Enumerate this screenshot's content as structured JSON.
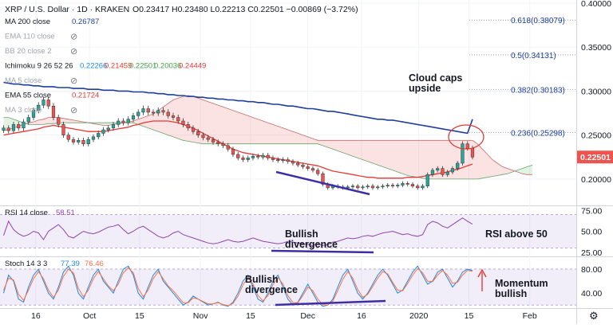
{
  "header": {
    "title": "XRP / U.S. Dollar · 1D · KRAKEN",
    "ohlc": "O0.23417  H0.23480  L0.22213  C0.22501  −0.00869 (−3.72%)"
  },
  "indicators": [
    {
      "label": "MA 200 close",
      "value": "0.26787",
      "color": "#1f3e9c",
      "hidden": false
    },
    {
      "label": "EMA 110 close",
      "value": "",
      "color": "#9a9a9a",
      "hidden": true
    },
    {
      "label": "BB 20 close 2",
      "value": "",
      "color": "#9a9a9a",
      "hidden": true
    },
    {
      "label": "Ichimoku 9 26 52 26",
      "value": "",
      "color": "#555555",
      "hidden": false
    },
    {
      "label": "MA 5 close",
      "value": "",
      "color": "#9a9a9a",
      "hidden": true
    },
    {
      "label": "EMA 55 close",
      "value": "0.21724",
      "color": "#e53935",
      "hidden": false
    },
    {
      "label": "MA 3 close",
      "value": "",
      "color": "#9a9a9a",
      "hidden": true
    }
  ],
  "ichimoku_values": [
    {
      "v": "0.22266",
      "c": "#1e88e5"
    },
    {
      "v": "0.21459",
      "c": "#e53935"
    },
    {
      "v": "0.22501",
      "c": "#43a047"
    },
    {
      "v": "0.20036",
      "c": "#43a047"
    },
    {
      "v": "0.24449",
      "c": "#e53935"
    }
  ],
  "annotations": {
    "cloud": [
      "Cloud caps",
      "upside"
    ],
    "price_divergence": [
      "Bullish",
      "divergence"
    ],
    "stoch_divergence": [
      "Bullish",
      "divergence"
    ],
    "rsi_note": "RSI above 50",
    "momentum": [
      "Momentum",
      "bullish"
    ]
  },
  "rsi_legend": {
    "label": "RSI 14 close",
    "value": "58.51",
    "color": "#8e44ad"
  },
  "stoch_legend": {
    "label": "Stoch 14 3 3",
    "k": "77.39",
    "d": "76.46",
    "kcolor": "#1e88e5",
    "dcolor": "#ff7043"
  },
  "current_price": "0.22501",
  "chart_data": [
    {
      "type": "candlestick",
      "title": "XRP / U.S. Dollar · 1D · KRAKEN",
      "ylim": [
        0.17,
        0.4
      ],
      "y_ticks": [
        "0.40000",
        "0.35000",
        "0.30000",
        "0.25000",
        "0.20000"
      ],
      "fib_levels": [
        {
          "label": "0.618(0.38079)",
          "value": 0.38079
        },
        {
          "label": "0.5(0.34131)",
          "value": 0.34131
        },
        {
          "label": "0.382(0.30183)",
          "value": 0.30183
        },
        {
          "label": "0.236(0.25298)",
          "value": 0.25298
        }
      ],
      "x_ticks": [
        {
          "label": "16",
          "date": "2019-09-16"
        },
        {
          "label": "Oct",
          "date": "2019-10-01"
        },
        {
          "label": "15",
          "date": "2019-10-15"
        },
        {
          "label": "Nov",
          "date": "2019-11-01"
        },
        {
          "label": "15",
          "date": "2019-11-15"
        },
        {
          "label": "Dec",
          "date": "2019-12-01"
        },
        {
          "label": "16",
          "date": "2019-12-16"
        },
        {
          "label": "2020",
          "date": "2020-01-01"
        },
        {
          "label": "15",
          "date": "2020-01-15"
        },
        {
          "label": "Feb",
          "date": "2020-02-01"
        }
      ],
      "closes": [
        0.258,
        0.255,
        0.262,
        0.258,
        0.265,
        0.27,
        0.278,
        0.284,
        0.29,
        0.283,
        0.27,
        0.262,
        0.25,
        0.245,
        0.242,
        0.244,
        0.24,
        0.245,
        0.248,
        0.252,
        0.256,
        0.258,
        0.262,
        0.266,
        0.264,
        0.268,
        0.272,
        0.276,
        0.28,
        0.276,
        0.275,
        0.278,
        0.276,
        0.272,
        0.27,
        0.266,
        0.262,
        0.258,
        0.254,
        0.25,
        0.247,
        0.245,
        0.242,
        0.24,
        0.238,
        0.234,
        0.228,
        0.224,
        0.222,
        0.224,
        0.226,
        0.225,
        0.227,
        0.224,
        0.222,
        0.221,
        0.222,
        0.22,
        0.218,
        0.216,
        0.214,
        0.212,
        0.21,
        0.206,
        0.194,
        0.19,
        0.192,
        0.191,
        0.19,
        0.191,
        0.192,
        0.19,
        0.191,
        0.192,
        0.19,
        0.191,
        0.192,
        0.193,
        0.192,
        0.193,
        0.195,
        0.194,
        0.192,
        0.19,
        0.192,
        0.205,
        0.21,
        0.212,
        0.205,
        0.208,
        0.212,
        0.218,
        0.24,
        0.235,
        0.225
      ],
      "ema55": [
        0.25,
        0.251,
        0.252,
        0.253,
        0.254,
        0.255,
        0.256,
        0.257,
        0.259,
        0.26,
        0.261,
        0.26,
        0.259,
        0.258,
        0.257,
        0.256,
        0.255,
        0.254,
        0.254,
        0.254,
        0.254,
        0.255,
        0.256,
        0.257,
        0.258,
        0.259,
        0.261,
        0.262,
        0.264,
        0.265,
        0.266,
        0.266,
        0.266,
        0.266,
        0.265,
        0.264,
        0.262,
        0.26,
        0.258,
        0.255,
        0.252,
        0.249,
        0.246,
        0.243,
        0.24,
        0.237,
        0.234,
        0.232,
        0.23,
        0.229,
        0.228,
        0.227,
        0.226,
        0.225,
        0.224,
        0.223,
        0.222,
        0.221,
        0.22,
        0.219,
        0.218,
        0.217,
        0.216,
        0.215,
        0.213,
        0.211,
        0.209,
        0.208,
        0.207,
        0.206,
        0.205,
        0.204,
        0.203,
        0.202,
        0.202,
        0.201,
        0.201,
        0.201,
        0.201,
        0.201,
        0.201,
        0.202,
        0.202,
        0.202,
        0.203,
        0.204,
        0.205,
        0.206,
        0.207,
        0.208,
        0.21,
        0.211,
        0.213,
        0.215,
        0.217
      ],
      "ma200": [
        0.31,
        0.309,
        0.308,
        0.308,
        0.307,
        0.307,
        0.306,
        0.306,
        0.305,
        0.305,
        0.305,
        0.304,
        0.304,
        0.304,
        0.303,
        0.303,
        0.303,
        0.302,
        0.302,
        0.302,
        0.301,
        0.301,
        0.301,
        0.3,
        0.3,
        0.3,
        0.299,
        0.299,
        0.299,
        0.298,
        0.298,
        0.297,
        0.297,
        0.296,
        0.296,
        0.295,
        0.295,
        0.294,
        0.294,
        0.293,
        0.293,
        0.292,
        0.292,
        0.291,
        0.291,
        0.29,
        0.29,
        0.289,
        0.289,
        0.288,
        0.288,
        0.287,
        0.287,
        0.286,
        0.285,
        0.285,
        0.284,
        0.283,
        0.283,
        0.282,
        0.281,
        0.28,
        0.28,
        0.279,
        0.278,
        0.277,
        0.277,
        0.276,
        0.275,
        0.274,
        0.273,
        0.272,
        0.271,
        0.27,
        0.269,
        0.268,
        0.268,
        0.267,
        0.267,
        0.266,
        0.265,
        0.264,
        0.263,
        0.262,
        0.261,
        0.26,
        0.259,
        0.258,
        0.257,
        0.256,
        0.255,
        0.254,
        0.253,
        0.252,
        0.268
      ],
      "cloud_upper": [
        0.255,
        0.256,
        0.258,
        0.26,
        0.262,
        0.264,
        0.265,
        0.267,
        0.268,
        0.27,
        0.27,
        0.27,
        0.269,
        0.268,
        0.267,
        0.266,
        0.265,
        0.264,
        0.263,
        0.262,
        0.261,
        0.261,
        0.262,
        0.263,
        0.264,
        0.265,
        0.266,
        0.268,
        0.27,
        0.272,
        0.274,
        0.278,
        0.282,
        0.286,
        0.29,
        0.292,
        0.294,
        0.295,
        0.294,
        0.292,
        0.29,
        0.288,
        0.286,
        0.284,
        0.282,
        0.28,
        0.278,
        0.276,
        0.274,
        0.272,
        0.27,
        0.268,
        0.266,
        0.264,
        0.262,
        0.26,
        0.258,
        0.256,
        0.254,
        0.252,
        0.25,
        0.248,
        0.246,
        0.244,
        0.244,
        0.244,
        0.244,
        0.244,
        0.244,
        0.244,
        0.244,
        0.244,
        0.244,
        0.244,
        0.244,
        0.244,
        0.244,
        0.244,
        0.244,
        0.244,
        0.244,
        0.244,
        0.244,
        0.244,
        0.244,
        0.244,
        0.244,
        0.244,
        0.244,
        0.244,
        0.244,
        0.244,
        0.244,
        0.244,
        0.244,
        0.24,
        0.234,
        0.228,
        0.222,
        0.218,
        0.214,
        0.212,
        0.21,
        0.208,
        0.206,
        0.205,
        0.205
      ],
      "cloud_lower": [
        0.27,
        0.27,
        0.268,
        0.266,
        0.264,
        0.262,
        0.262,
        0.262,
        0.262,
        0.263,
        0.263,
        0.264,
        0.264,
        0.264,
        0.264,
        0.264,
        0.264,
        0.264,
        0.264,
        0.264,
        0.264,
        0.264,
        0.264,
        0.264,
        0.264,
        0.264,
        0.264,
        0.262,
        0.26,
        0.258,
        0.256,
        0.254,
        0.252,
        0.25,
        0.248,
        0.246,
        0.244,
        0.243,
        0.242,
        0.241,
        0.24,
        0.24,
        0.24,
        0.24,
        0.24,
        0.24,
        0.24,
        0.24,
        0.24,
        0.24,
        0.24,
        0.24,
        0.24,
        0.24,
        0.24,
        0.24,
        0.24,
        0.24,
        0.24,
        0.24,
        0.24,
        0.24,
        0.24,
        0.24,
        0.238,
        0.236,
        0.234,
        0.232,
        0.23,
        0.228,
        0.226,
        0.224,
        0.222,
        0.22,
        0.218,
        0.216,
        0.214,
        0.212,
        0.21,
        0.208,
        0.206,
        0.204,
        0.203,
        0.202,
        0.201,
        0.2,
        0.2,
        0.2,
        0.2,
        0.2,
        0.2,
        0.2,
        0.2,
        0.2,
        0.2,
        0.2,
        0.201,
        0.202,
        0.203,
        0.204,
        0.205,
        0.206,
        0.208,
        0.21,
        0.212,
        0.214,
        0.216
      ]
    },
    {
      "type": "line",
      "title": "RSI 14 close",
      "ylim": [
        20,
        80
      ],
      "y_ticks": [
        "75.00",
        "50.00",
        "25.00"
      ],
      "bands": [
        70,
        30
      ],
      "values": [
        45,
        62,
        52,
        47,
        44,
        46,
        50,
        48,
        40,
        50,
        54,
        58,
        52,
        44,
        42,
        46,
        50,
        48,
        47,
        49,
        52,
        55,
        56,
        58,
        52,
        47,
        50,
        54,
        56,
        52,
        48,
        44,
        42,
        44,
        48,
        50,
        46,
        44,
        42,
        40,
        38,
        36,
        35,
        36,
        38,
        40,
        38,
        37,
        38,
        40,
        42,
        40,
        38,
        37,
        36,
        35,
        36,
        38,
        37,
        36,
        35,
        34,
        33,
        35,
        33,
        34,
        37,
        38,
        40,
        42,
        41,
        42,
        44,
        45,
        44,
        46,
        48,
        49,
        50,
        48,
        46,
        47,
        45,
        44,
        46,
        58,
        62,
        60,
        56,
        54,
        58,
        62,
        66,
        62,
        58.51
      ]
    },
    {
      "type": "line",
      "title": "Stoch 14 3 3",
      "ylim": [
        15,
        100
      ],
      "y_ticks": [
        "80.00",
        "40.00"
      ],
      "bands": [
        80,
        20
      ],
      "series": [
        {
          "name": "K",
          "values": [
            40,
            70,
            60,
            30,
            25,
            50,
            70,
            80,
            60,
            40,
            30,
            50,
            75,
            85,
            70,
            40,
            30,
            50,
            70,
            80,
            60,
            50,
            40,
            60,
            80,
            85,
            70,
            40,
            30,
            50,
            70,
            80,
            60,
            50,
            40,
            30,
            20,
            25,
            35,
            30,
            25,
            20,
            22,
            25,
            20,
            18,
            25,
            40,
            60,
            70,
            50,
            30,
            25,
            40,
            60,
            70,
            50,
            30,
            20,
            25,
            40,
            55,
            40,
            25,
            18,
            20,
            30,
            50,
            70,
            80,
            60,
            40,
            30,
            40,
            55,
            70,
            80,
            70,
            55,
            40,
            45,
            60,
            75,
            85,
            70,
            55,
            60,
            75,
            80,
            65,
            50,
            60,
            75,
            80,
            77.39
          ]
        },
        {
          "name": "D",
          "values": [
            45,
            65,
            62,
            38,
            28,
            45,
            64,
            76,
            64,
            45,
            33,
            45,
            68,
            80,
            74,
            48,
            34,
            45,
            64,
            76,
            64,
            52,
            44,
            55,
            74,
            82,
            74,
            48,
            34,
            45,
            64,
            76,
            64,
            52,
            44,
            34,
            24,
            24,
            32,
            30,
            26,
            22,
            22,
            24,
            21,
            19,
            23,
            35,
            54,
            66,
            55,
            36,
            27,
            36,
            54,
            66,
            55,
            36,
            24,
            24,
            36,
            50,
            44,
            30,
            21,
            20,
            27,
            44,
            63,
            76,
            65,
            46,
            33,
            38,
            51,
            65,
            76,
            72,
            58,
            45,
            44,
            56,
            70,
            81,
            74,
            60,
            59,
            70,
            78,
            70,
            56,
            58,
            70,
            78,
            76.46
          ]
        }
      ]
    }
  ]
}
